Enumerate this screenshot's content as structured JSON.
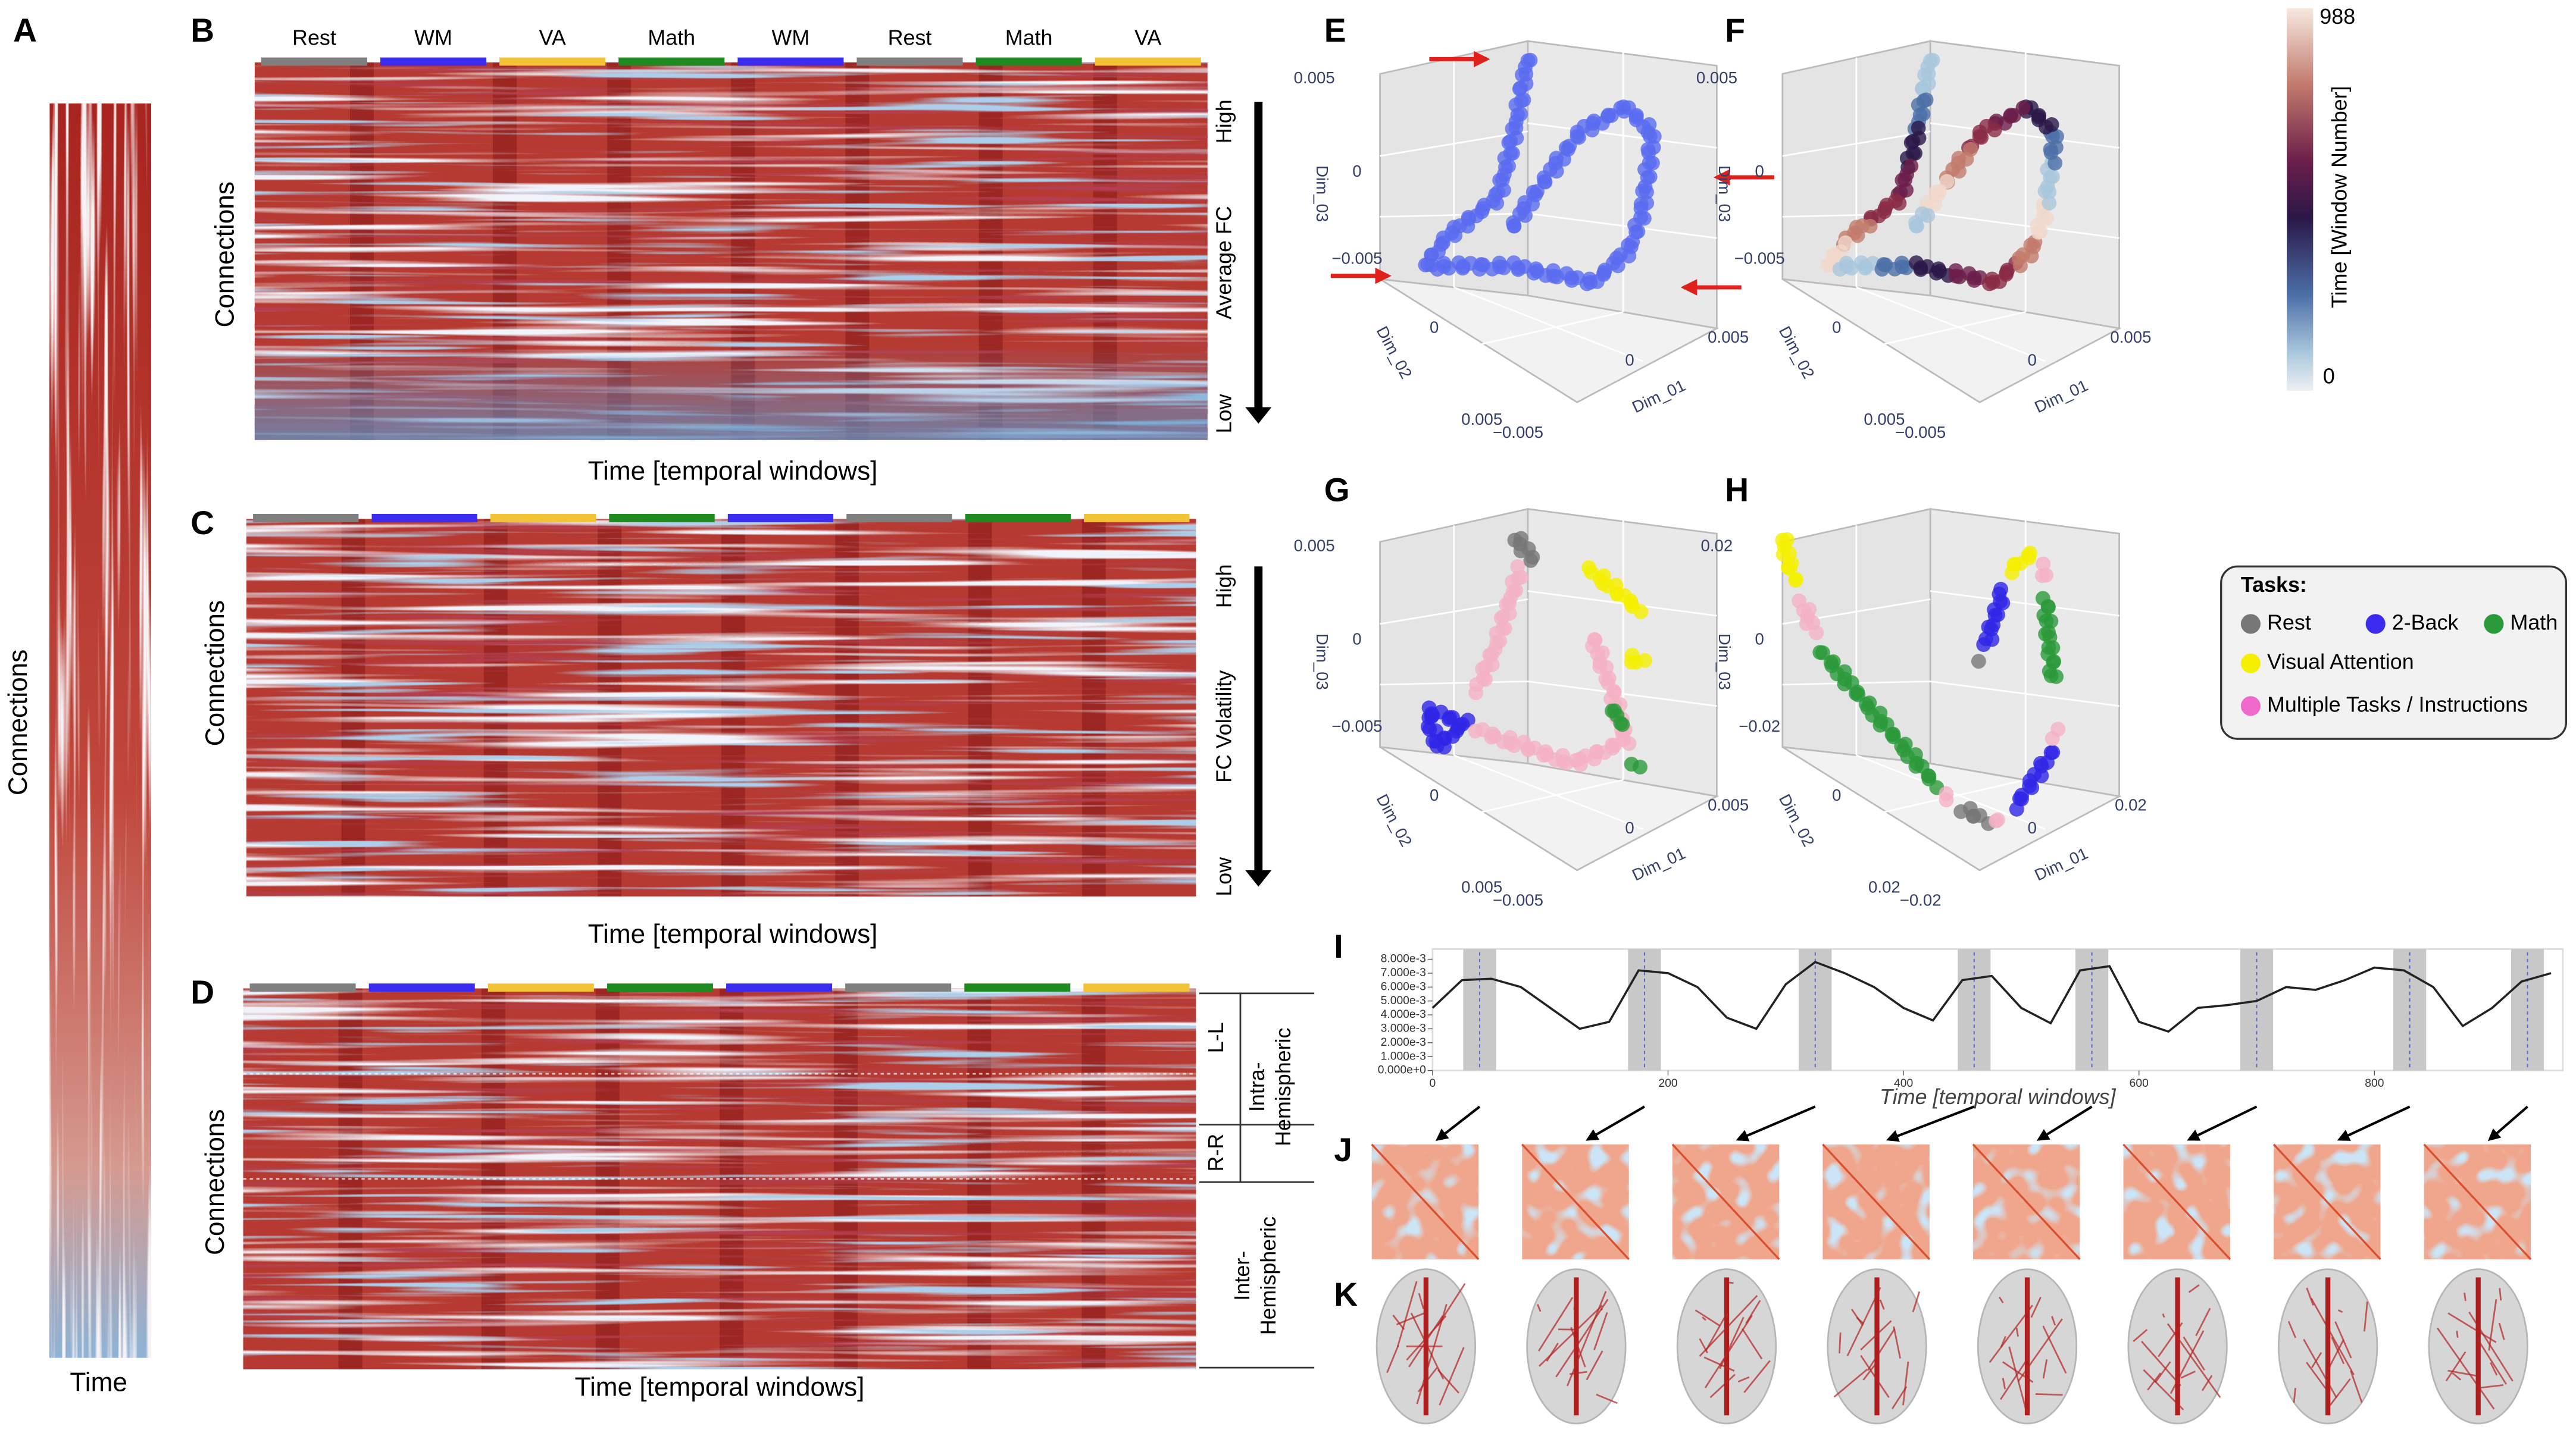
{
  "panels": {
    "a": "A",
    "b": "B",
    "c": "C",
    "d": "D",
    "e": "E",
    "f": "F",
    "g": "G",
    "h": "H",
    "i": "I",
    "j": "J",
    "k": "K"
  },
  "panel_a": {
    "y_label": "Connections",
    "x_label": "Time"
  },
  "tasks": [
    {
      "name": "Rest",
      "color": "#7f7f7f"
    },
    {
      "name": "WM",
      "color": "#3b2cf0"
    },
    {
      "name": "VA",
      "color": "#f2c335"
    },
    {
      "name": "Math",
      "color": "#1f8a1f"
    },
    {
      "name": "WM",
      "color": "#3b2cf0"
    },
    {
      "name": "Rest",
      "color": "#7f7f7f"
    },
    {
      "name": "Math",
      "color": "#1f8a1f"
    },
    {
      "name": "VA",
      "color": "#f2c335"
    }
  ],
  "panel_b": {
    "y_label": "Connections",
    "x_label": "Time [temporal windows]",
    "high": "High",
    "measure": "Average FC",
    "low": "Low"
  },
  "panel_c": {
    "y_label": "Connections",
    "x_label": "Time [temporal windows]",
    "high": "High",
    "measure": "FC Volatility",
    "low": "Low"
  },
  "panel_d": {
    "y_label": "Connections",
    "x_label": "Time [temporal windows]",
    "intra_groups": [
      "L-L",
      "R-R"
    ],
    "intra": [
      "Intra-",
      "Hemispheric"
    ],
    "inter": [
      "Inter-",
      "Hemispheric"
    ]
  },
  "embedding_e": {
    "axis_labels": [
      "Dim_01",
      "Dim_02",
      "Dim_03"
    ],
    "tick_labels": [
      "0.005",
      "0",
      "−0.005",
      "0",
      "0.005",
      "−0.005",
      "0",
      "0.005"
    ]
  },
  "embedding_f": {
    "axis_labels": [
      "Dim_01",
      "Dim_02",
      "Dim_03"
    ],
    "tick_labels": [
      "0.005",
      "0",
      "−0.005",
      "0",
      "0.005",
      "−0.005",
      "0",
      "0.005"
    ]
  },
  "embedding_g": {
    "axis_labels": [
      "Dim_01",
      "Dim_02",
      "Dim_03"
    ],
    "tick_labels": [
      "0.005",
      "0",
      "−0.005",
      "0",
      "0.005",
      "−0.005",
      "0",
      "0.005"
    ]
  },
  "embedding_h": {
    "axis_labels": [
      "Dim_01",
      "Dim_02",
      "Dim_03"
    ],
    "tick_labels": [
      "0.02",
      "0",
      "−0.02",
      "0",
      "0.02",
      "−0.02",
      "0",
      "0.02"
    ]
  },
  "colorbar": {
    "max": 988,
    "min": 0,
    "label": "Time [Window Number]"
  },
  "legend": {
    "title": "Tasks:",
    "items": [
      {
        "name": "Rest",
        "color": "#777777"
      },
      {
        "name": "2-Back",
        "color": "#3b2cf0"
      },
      {
        "name": "Math",
        "color": "#2a9a3a"
      },
      {
        "name": "Visual Attention",
        "color": "#f5f000"
      },
      {
        "name": "Multiple Tasks / Instructions",
        "color": "#f06acb"
      }
    ]
  },
  "chart_data": {
    "type": "line",
    "x_label": "Time [temporal windows]",
    "color": "#222222",
    "x": [
      0,
      25,
      50,
      75,
      100,
      125,
      150,
      175,
      200,
      225,
      250,
      275,
      300,
      325,
      350,
      375,
      400,
      425,
      450,
      475,
      500,
      525,
      550,
      575,
      600,
      625,
      650,
      675,
      700,
      725,
      750,
      775,
      800,
      825,
      850,
      875,
      900,
      925,
      950
    ],
    "values": [
      0.0045,
      0.0065,
      0.0066,
      0.006,
      0.0045,
      0.003,
      0.0035,
      0.0072,
      0.007,
      0.006,
      0.0038,
      0.003,
      0.0062,
      0.0078,
      0.007,
      0.006,
      0.0045,
      0.0036,
      0.0065,
      0.0068,
      0.0045,
      0.0034,
      0.0072,
      0.0075,
      0.0035,
      0.0028,
      0.0045,
      0.0047,
      0.005,
      0.006,
      0.0058,
      0.0065,
      0.0074,
      0.0072,
      0.006,
      0.0032,
      0.0045,
      0.0064,
      0.007
    ],
    "highlights": [
      40,
      180,
      325,
      460,
      560,
      700,
      830,
      930
    ],
    "xlim": [
      0,
      960
    ],
    "ylim": [
      0,
      0.0085
    ],
    "xticks": [
      0,
      200,
      400,
      600,
      800
    ],
    "yticks": [
      {
        "value": 0,
        "label": "0.000e+0"
      },
      {
        "value": 0.001,
        "label": "1.000e-3"
      },
      {
        "value": 0.002,
        "label": "2.000e-3"
      },
      {
        "value": 0.003,
        "label": "3.000e-3"
      },
      {
        "value": 0.004,
        "label": "4.000e-3"
      },
      {
        "value": 0.005,
        "label": "5.000e-3"
      },
      {
        "value": 0.006,
        "label": "6.000e-3"
      },
      {
        "value": 0.007,
        "label": "7.000e-3"
      },
      {
        "value": 0.008,
        "label": "8.000e-3"
      }
    ]
  }
}
